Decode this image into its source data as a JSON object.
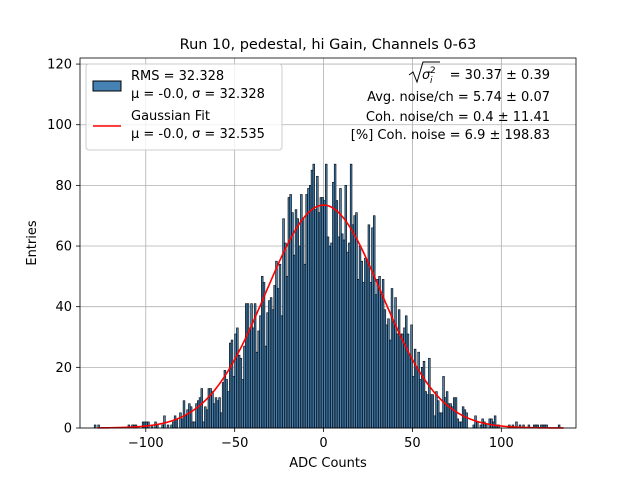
{
  "chart_data": {
    "type": "bar",
    "title": "Run 10, pedestal, hi Gain, Channels 0-63",
    "xlabel": "ADC Counts",
    "ylabel": "Entries",
    "xlim": [
      -137,
      142
    ],
    "ylim": [
      0,
      122
    ],
    "xticks": [
      -100,
      -50,
      0,
      50,
      100
    ],
    "yticks": [
      0,
      20,
      40,
      60,
      80,
      100,
      120
    ],
    "grid": true,
    "legend_position": "upper-left",
    "histogram": {
      "name": "RMS = 32.328",
      "name_line2": "μ = -0.0, σ = 32.328",
      "color": "#4682b4",
      "edge_color": "#000000",
      "mean": 0.0,
      "sigma": 32.328,
      "bin_width": 1,
      "bin_range": [
        -130,
        134
      ],
      "peak_entries": 87
    },
    "fit": {
      "name": "Gaussian Fit",
      "name_line2": "μ = -0.0, σ = 32.535",
      "color": "#ff0000",
      "mean": 0.0,
      "sigma": 32.535,
      "amplitude": 73.5
    },
    "annotations": {
      "line1_value": " = 30.37 ± 0.39",
      "line2": "Avg. noise/ch = 5.74 ± 0.07",
      "line3": "Coh. noise/ch = 0.4 ± 11.41",
      "line4": "[%] Coh. noise = 6.9 ± 198.83"
    }
  }
}
